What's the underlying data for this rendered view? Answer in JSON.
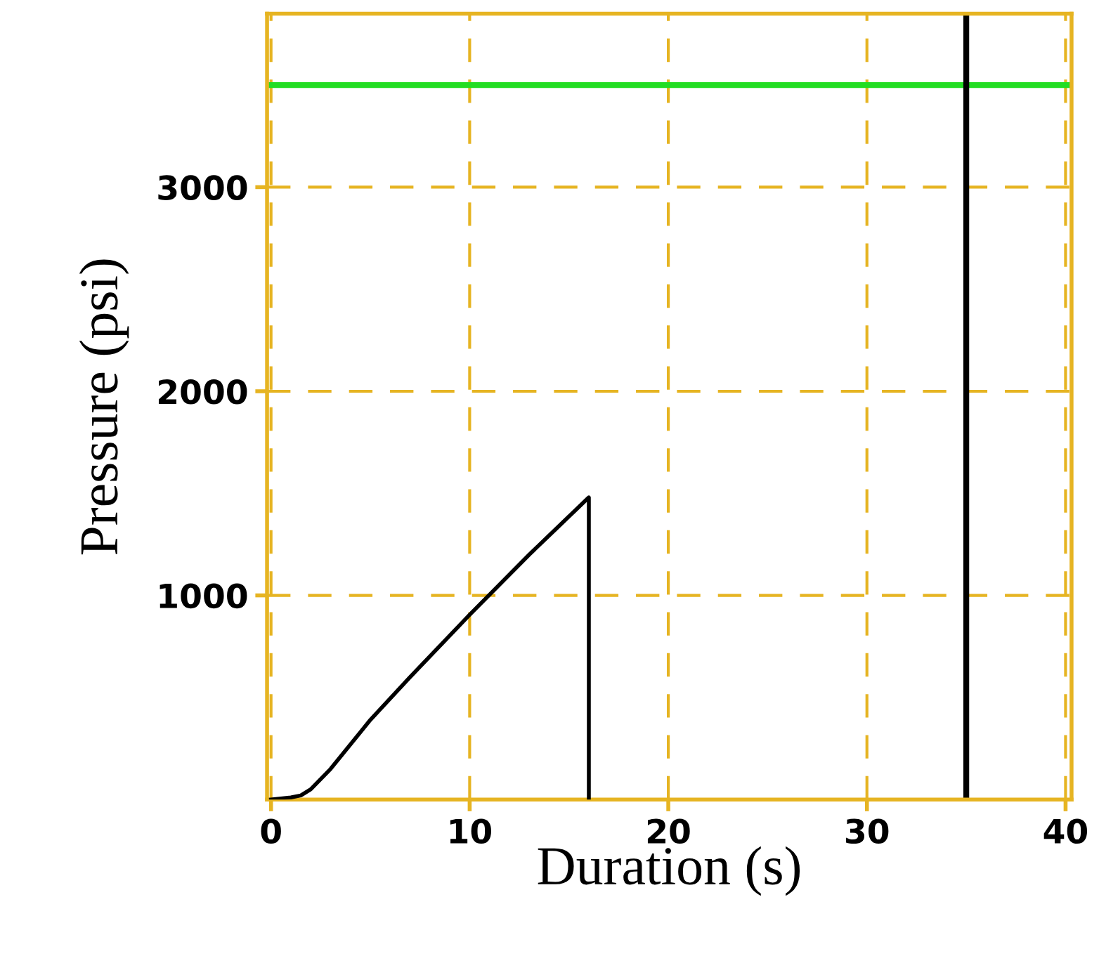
{
  "chart_data": {
    "type": "line",
    "xlabel": "Duration (s)",
    "ylabel": "Pressure (psi)",
    "series": [
      {
        "color": "#000000",
        "x": [
          0,
          1,
          1.5,
          2,
          3,
          5,
          7,
          10,
          13,
          16,
          16
        ],
        "values": [
          0,
          10,
          20,
          50,
          150,
          390,
          600,
          905,
          1200,
          1480,
          0
        ]
      }
    ],
    "xlim": [
      -0.2,
      40.3
    ],
    "ylim": [
      0,
      3850
    ],
    "xticks": [
      0,
      10,
      20,
      30,
      40
    ],
    "yticks": [
      1000,
      2000,
      3000
    ],
    "grid": true,
    "marker": "none",
    "line_style": "solid",
    "ref_lines": [
      {
        "axis": "y",
        "value": 3500,
        "color": "#22dd22"
      },
      {
        "axis": "x",
        "value": 35,
        "color": "#000000"
      }
    ]
  }
}
